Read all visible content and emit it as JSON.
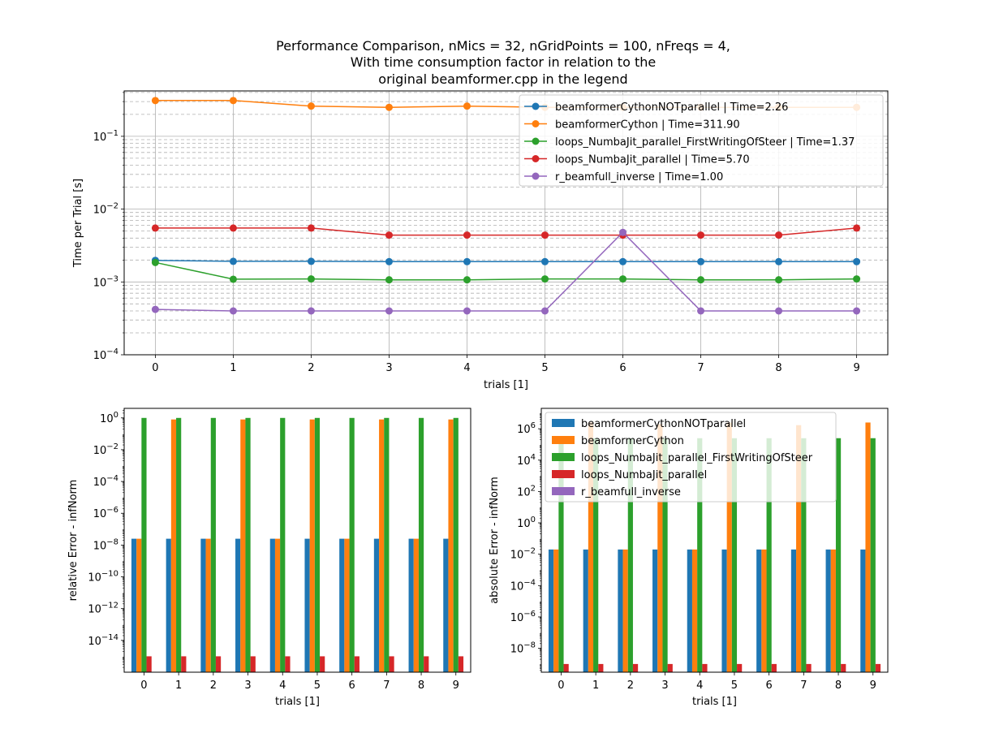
{
  "figure": {
    "title_lines": [
      "Performance Comparison, nMics = 32, nGridPoints = 100, nFreqs = 4,",
      "With time consumption factor in relation to the",
      "original beamformer.cpp in the legend"
    ]
  },
  "colors": {
    "beamformerCythonNOTparallel": "#1f77b4",
    "beamformerCython": "#ff7f0e",
    "loops_NumbaJit_parallel_FirstWritingOfSteer": "#2ca02c",
    "loops_NumbaJit_parallel": "#d62728",
    "r_beamfull_inverse": "#9467bd"
  },
  "chart_data": [
    {
      "type": "line",
      "yscale": "log",
      "xlabel": "trials [1]",
      "ylabel": "Time per Trial [s]",
      "xlim": [
        -0.4,
        9.4
      ],
      "ylim": [
        0.0001,
        0.42
      ],
      "x": [
        0,
        1,
        2,
        3,
        4,
        5,
        6,
        7,
        8,
        9
      ],
      "ytick_labels": [
        {
          "value": 0.0001,
          "base": "10",
          "exp": "−4"
        },
        {
          "value": 0.001,
          "base": "10",
          "exp": "−3"
        },
        {
          "value": 0.01,
          "base": "10",
          "exp": "−2"
        },
        {
          "value": 0.1,
          "base": "10",
          "exp": "−1"
        }
      ],
      "grid": true,
      "legend_position": "upper-right",
      "series": [
        {
          "key": "beamformerCythonNOTparallel",
          "name": "beamformerCythonNOTparallel | Time=2.26",
          "values": [
            0.00198,
            0.00192,
            0.00192,
            0.0019,
            0.0019,
            0.0019,
            0.0019,
            0.0019,
            0.0019,
            0.0019
          ]
        },
        {
          "key": "beamformerCython",
          "name": "beamformerCython | Time=311.90",
          "values": [
            0.31,
            0.31,
            0.26,
            0.25,
            0.26,
            0.25,
            0.25,
            0.25,
            0.25,
            0.25
          ]
        },
        {
          "key": "loops_NumbaJit_parallel_FirstWritingOfSteer",
          "name": "loops_NumbaJit_parallel_FirstWritingOfSteer | Time=1.37",
          "values": [
            0.00185,
            0.00109,
            0.0011,
            0.00107,
            0.00107,
            0.0011,
            0.0011,
            0.00107,
            0.00107,
            0.0011
          ]
        },
        {
          "key": "loops_NumbaJit_parallel",
          "name": "loops_NumbaJit_parallel | Time=5.70",
          "values": [
            0.0055,
            0.0055,
            0.0055,
            0.0044,
            0.0044,
            0.0044,
            0.0044,
            0.0044,
            0.0044,
            0.0055
          ]
        },
        {
          "key": "r_beamfull_inverse",
          "name": "r_beamfull_inverse | Time=1.00",
          "values": [
            0.00042,
            0.0004,
            0.0004,
            0.0004,
            0.0004,
            0.0004,
            0.0048,
            0.0004,
            0.0004,
            0.0004
          ]
        }
      ]
    },
    {
      "type": "bar",
      "yscale": "log",
      "xlabel": "trials [1]",
      "ylabel": "relative Error - infNorm",
      "ylim": [
        1e-16,
        4
      ],
      "categories": [
        "0",
        "1",
        "2",
        "3",
        "4",
        "5",
        "6",
        "7",
        "8",
        "9"
      ],
      "ytick_labels": [
        {
          "value": 1e-14,
          "base": "10",
          "exp": "−14"
        },
        {
          "value": 1e-12,
          "base": "10",
          "exp": "−12"
        },
        {
          "value": 1e-10,
          "base": "10",
          "exp": "−10"
        },
        {
          "value": 1e-08,
          "base": "10",
          "exp": "−8"
        },
        {
          "value": 1e-06,
          "base": "10",
          "exp": "−6"
        },
        {
          "value": 0.0001,
          "base": "10",
          "exp": "−4"
        },
        {
          "value": 0.01,
          "base": "10",
          "exp": "−2"
        },
        {
          "value": 1,
          "base": "10",
          "exp": "0"
        }
      ],
      "series": [
        {
          "key": "beamformerCythonNOTparallel",
          "values": [
            2.5e-08,
            2.5e-08,
            2.5e-08,
            2.5e-08,
            2.5e-08,
            2.5e-08,
            2.5e-08,
            2.5e-08,
            2.5e-08,
            2.5e-08
          ]
        },
        {
          "key": "beamformerCython",
          "values": [
            2.5e-08,
            0.8,
            2.5e-08,
            0.8,
            2.5e-08,
            0.8,
            2.5e-08,
            0.8,
            2.5e-08,
            0.8
          ]
        },
        {
          "key": "loops_NumbaJit_parallel_FirstWritingOfSteer",
          "values": [
            1.0,
            1.0,
            1.0,
            1.0,
            1.0,
            1.0,
            1.0,
            1.0,
            1.0,
            1.0
          ]
        },
        {
          "key": "loops_NumbaJit_parallel",
          "values": [
            1e-15,
            1e-15,
            1e-15,
            1e-15,
            1e-15,
            1e-15,
            1e-15,
            1e-15,
            1e-15,
            1e-15
          ]
        },
        {
          "key": "r_beamfull_inverse",
          "values": [
            0,
            0,
            0,
            0,
            0,
            0,
            0,
            0,
            0,
            0
          ]
        }
      ]
    },
    {
      "type": "bar",
      "yscale": "log",
      "xlabel": "trials [1]",
      "ylabel": "absolute Error - infNorm",
      "ylim": [
        3e-10,
        20000000.0
      ],
      "categories": [
        "0",
        "1",
        "2",
        "3",
        "4",
        "5",
        "6",
        "7",
        "8",
        "9"
      ],
      "ytick_labels": [
        {
          "value": 1e-08,
          "base": "10",
          "exp": "−8"
        },
        {
          "value": 1e-06,
          "base": "10",
          "exp": "−6"
        },
        {
          "value": 0.0001,
          "base": "10",
          "exp": "−4"
        },
        {
          "value": 0.01,
          "base": "10",
          "exp": "−2"
        },
        {
          "value": 1,
          "base": "10",
          "exp": "0"
        },
        {
          "value": 100,
          "base": "10",
          "exp": "2"
        },
        {
          "value": 10000,
          "base": "10",
          "exp": "4"
        },
        {
          "value": 1000000,
          "base": "10",
          "exp": "6"
        }
      ],
      "legend_position": "upper-left",
      "legend": [
        {
          "key": "beamformerCythonNOTparallel",
          "label": "beamformerCythonNOTparallel"
        },
        {
          "key": "beamformerCython",
          "label": "beamformerCython"
        },
        {
          "key": "loops_NumbaJit_parallel_FirstWritingOfSteer",
          "label": "loops_NumbaJit_parallel_FirstWritingOfSteer"
        },
        {
          "key": "loops_NumbaJit_parallel",
          "label": "loops_NumbaJit_parallel"
        },
        {
          "key": "r_beamfull_inverse",
          "label": "r_beamfull_inverse"
        }
      ],
      "series": [
        {
          "key": "beamformerCythonNOTparallel",
          "values": [
            0.02,
            0.02,
            0.02,
            0.02,
            0.02,
            0.02,
            0.02,
            0.02,
            0.02,
            0.02
          ]
        },
        {
          "key": "beamformerCython",
          "values": [
            0.02,
            2500000,
            0.02,
            2000000,
            0.02,
            2500000,
            0.02,
            1700000,
            0.02,
            2500000
          ]
        },
        {
          "key": "loops_NumbaJit_parallel_FirstWritingOfSteer",
          "values": [
            250000,
            250000,
            250000,
            250000,
            250000,
            250000,
            250000,
            250000,
            250000,
            250000
          ]
        },
        {
          "key": "loops_NumbaJit_parallel",
          "values": [
            1e-09,
            1e-09,
            1e-09,
            1e-09,
            1e-09,
            1e-09,
            1e-09,
            1e-09,
            1e-09,
            1e-09
          ]
        },
        {
          "key": "r_beamfull_inverse",
          "values": [
            0,
            0,
            0,
            0,
            0,
            0,
            0,
            0,
            0,
            0
          ]
        }
      ]
    }
  ]
}
